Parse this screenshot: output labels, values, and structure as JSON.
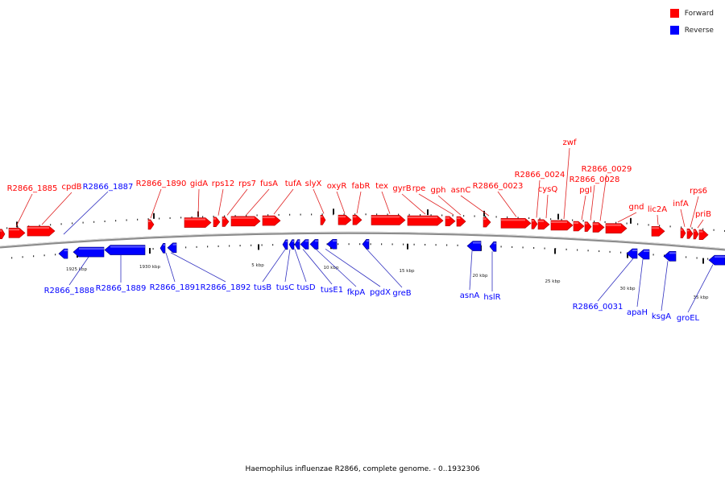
{
  "legend": {
    "forward": "Forward",
    "reverse": "Reverse"
  },
  "caption": "Haemophilus influenzae R2866, complete genome. - 0..1932306",
  "colors": {
    "forward": "#ff0000",
    "reverse": "#0000ff",
    "label_line_f": "#e02020",
    "label_line_r": "#3030c0",
    "backbone": "#8a8a8a"
  },
  "scale_labels": [
    "1925 kbp",
    "1930 kbp",
    "5 kbp",
    "10 kbp",
    "15 kbp",
    "20 kbp",
    "25 kbp",
    "30 kbp",
    "35 kbp"
  ],
  "forward_genes": [
    "R2866_1885",
    "cpdB",
    "R2866_1890",
    "gidA",
    "rps12",
    "rps7",
    "fusA",
    "tufA",
    "slyX",
    "oxyR",
    "fabR",
    "tex",
    "gyrB",
    "rpe",
    "gph",
    "asnC",
    "R2866_0023",
    "R2866_0024",
    "cysQ",
    "zwf",
    "R2866_0029",
    "R2866_0028",
    "pgl",
    "gnd",
    "lic2A",
    "infA",
    "rps6",
    "priB"
  ],
  "reverse_genes": [
    "R2866_1887",
    "R2866_1888",
    "R2866_1889",
    "R2866_1891",
    "R2866_1892",
    "tusB",
    "tusC",
    "tusD",
    "tusE1",
    "fkpA",
    "pgdX",
    "greB",
    "asnA",
    "hslR",
    "R2866_0031",
    "apaH",
    "ksgA",
    "groEL"
  ]
}
